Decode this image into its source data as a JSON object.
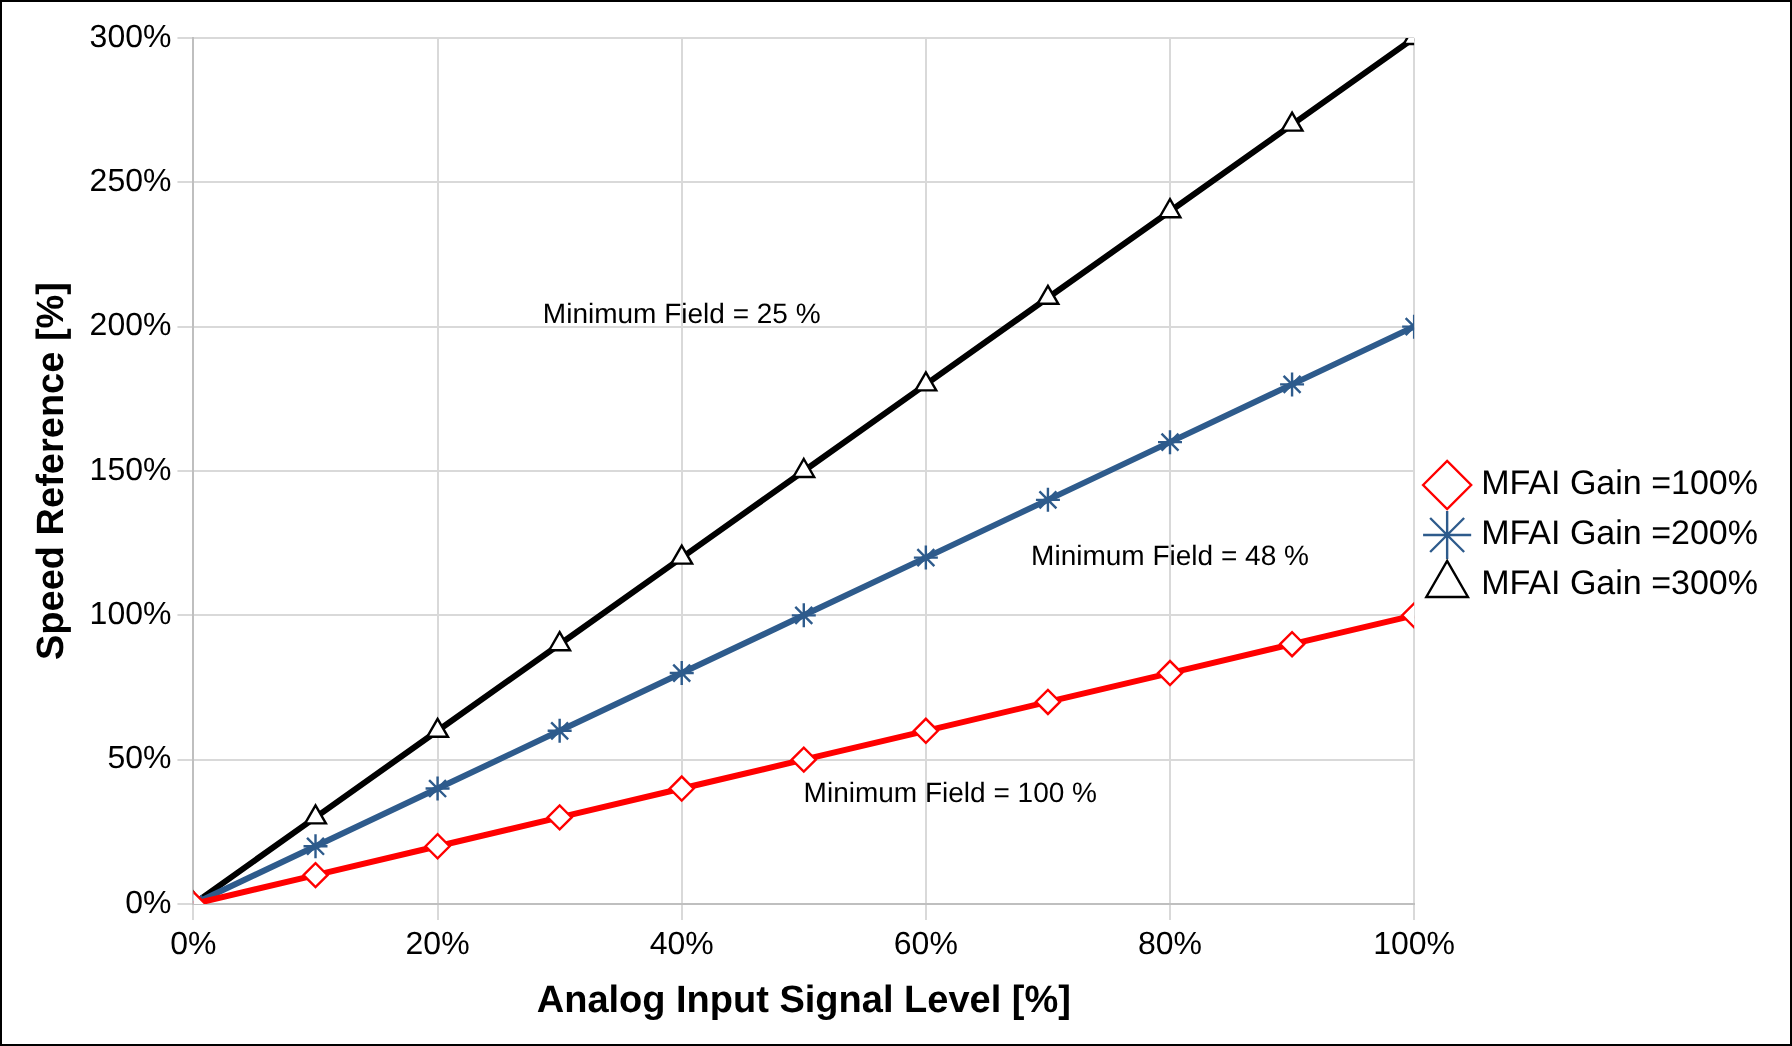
{
  "chart_data": {
    "type": "line",
    "xlabel": "Analog Input Signal Level [%]",
    "ylabel": "Speed Reference [%]",
    "x": [
      0,
      10,
      20,
      30,
      40,
      50,
      60,
      70,
      80,
      90,
      100
    ],
    "series": [
      {
        "name": "MFAI Gain =100%",
        "color": "#ff0000",
        "marker": "diamond",
        "values": [
          0,
          10,
          20,
          30,
          40,
          50,
          60,
          70,
          80,
          90,
          100
        ]
      },
      {
        "name": "MFAI Gain =200%",
        "color": "#2e5b8c",
        "marker": "cross",
        "values": [
          0,
          20,
          40,
          60,
          80,
          100,
          120,
          140,
          160,
          180,
          200
        ]
      },
      {
        "name": "MFAI Gain =300%",
        "color": "#000000",
        "marker": "triangle",
        "values": [
          0,
          30,
          60,
          90,
          120,
          150,
          180,
          210,
          240,
          270,
          300
        ]
      }
    ],
    "xlim": [
      0,
      100
    ],
    "xticks": [
      {
        "value": 0,
        "label": "0%"
      },
      {
        "value": 20,
        "label": "20%"
      },
      {
        "value": 40,
        "label": "40%"
      },
      {
        "value": 60,
        "label": "60%"
      },
      {
        "value": 80,
        "label": "80%"
      },
      {
        "value": 100,
        "label": "100%"
      }
    ],
    "ylim": [
      0,
      300
    ],
    "yticks": [
      {
        "value": 0,
        "label": "0%"
      },
      {
        "value": 50,
        "label": "50%"
      },
      {
        "value": 100,
        "label": "100%"
      },
      {
        "value": 150,
        "label": "150%"
      },
      {
        "value": 200,
        "label": "200%"
      },
      {
        "value": 250,
        "label": "250%"
      },
      {
        "value": 300,
        "label": "300%"
      }
    ],
    "grid": true,
    "legend": "right",
    "line_style": "solid",
    "annotations": [
      "Minimum Field = 25 %",
      "Minimum Field = 48 %",
      "Minimum Field = 100 %"
    ]
  }
}
